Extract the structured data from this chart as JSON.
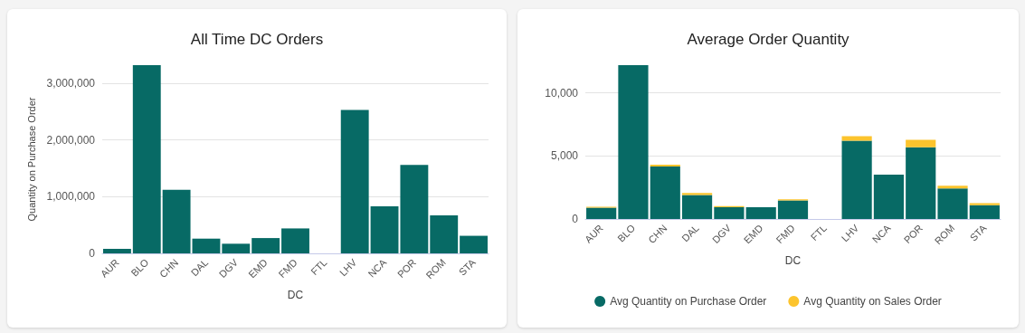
{
  "chart_data": [
    {
      "type": "bar",
      "title": "All Time DC Orders",
      "xlabel": "DC",
      "ylabel": "Quantity on Purchase Order",
      "categories": [
        "AUR",
        "BLO",
        "CHN",
        "DAL",
        "DGV",
        "EMD",
        "FMD",
        "FTL",
        "LHV",
        "NCA",
        "POR",
        "ROM",
        "STA"
      ],
      "values": [
        80000,
        3320000,
        1120000,
        260000,
        170000,
        270000,
        440000,
        0,
        2530000,
        830000,
        1560000,
        670000,
        310000
      ],
      "color": "#076a65",
      "ylim": [
        0,
        3320000
      ],
      "yticks": [
        0,
        {
          "value": 1000000,
          "label": "1,000,000"
        },
        {
          "value": 2000000,
          "label": "2,000,000"
        },
        {
          "value": 3000000,
          "label": "3,000,000"
        }
      ],
      "grid": "y",
      "legend": false
    },
    {
      "type": "bar",
      "title": "Average Order Quantity",
      "xlabel": "DC",
      "stacked": true,
      "categories": [
        "AUR",
        "BLO",
        "CHN",
        "DAL",
        "DGV",
        "EMD",
        "FMD",
        "FTL",
        "LHV",
        "NCA",
        "POR",
        "ROM",
        "STA"
      ],
      "series": [
        {
          "name": "Avg Quantity on Purchase Order",
          "color": "#076a65",
          "values": [
            890,
            12200,
            4160,
            1910,
            940,
            940,
            1480,
            0,
            6200,
            3520,
            5690,
            2420,
            1100
          ]
        },
        {
          "name": "Avg Quantity on Sales Order",
          "color": "#fcc42d",
          "values": [
            80,
            0,
            150,
            160,
            80,
            0,
            80,
            0,
            360,
            0,
            590,
            210,
            150
          ]
        }
      ],
      "ylim": [
        0,
        12200
      ],
      "yticks": [
        0,
        {
          "value": 5000,
          "label": "5,000"
        },
        {
          "value": 10000,
          "label": "10,000"
        }
      ],
      "grid": "y",
      "legend": "bottom"
    }
  ]
}
